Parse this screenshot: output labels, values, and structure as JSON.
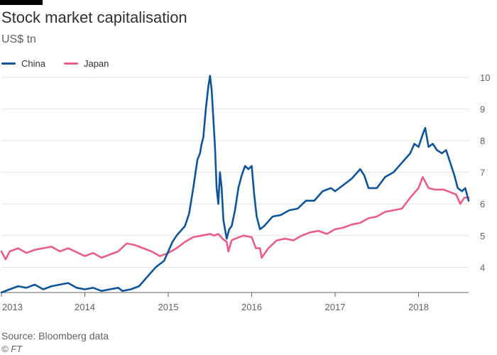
{
  "header": {
    "title": "Stock market capitalisation",
    "subtitle": "US$ tn"
  },
  "footer": {
    "source": "Source: Bloomberg data",
    "credit": "© FT"
  },
  "chart_data": {
    "type": "line",
    "title": "Stock market capitalisation",
    "ylabel": "US$ tn",
    "xlabel": "",
    "ylim": [
      3.2,
      10.2
    ],
    "xlim": [
      2013.0,
      2018.6
    ],
    "y_ticks": [
      4,
      5,
      6,
      7,
      8,
      9,
      10
    ],
    "x_ticks": [
      {
        "value": 2013.0,
        "label": "2013"
      },
      {
        "value": 2014.0,
        "label": "2014"
      },
      {
        "value": 2015.0,
        "label": "2015"
      },
      {
        "value": 2016.0,
        "label": "2016"
      },
      {
        "value": 2017.0,
        "label": "2017"
      },
      {
        "value": 2018.0,
        "label": "2018"
      }
    ],
    "grid": true,
    "legend": "top-left",
    "series": [
      {
        "name": "China",
        "color": "#0f5499",
        "points": [
          [
            2013.0,
            3.2
          ],
          [
            2013.1,
            3.3
          ],
          [
            2013.2,
            3.4
          ],
          [
            2013.3,
            3.35
          ],
          [
            2013.4,
            3.45
          ],
          [
            2013.5,
            3.3
          ],
          [
            2013.6,
            3.4
          ],
          [
            2013.7,
            3.45
          ],
          [
            2013.8,
            3.5
          ],
          [
            2013.9,
            3.35
          ],
          [
            2014.0,
            3.3
          ],
          [
            2014.1,
            3.35
          ],
          [
            2014.2,
            3.25
          ],
          [
            2014.3,
            3.3
          ],
          [
            2014.4,
            3.35
          ],
          [
            2014.45,
            3.25
          ],
          [
            2014.55,
            3.3
          ],
          [
            2014.65,
            3.4
          ],
          [
            2014.75,
            3.7
          ],
          [
            2014.85,
            4.0
          ],
          [
            2014.95,
            4.2
          ],
          [
            2015.0,
            4.5
          ],
          [
            2015.05,
            4.8
          ],
          [
            2015.1,
            5.0
          ],
          [
            2015.15,
            5.15
          ],
          [
            2015.2,
            5.3
          ],
          [
            2015.25,
            5.7
          ],
          [
            2015.3,
            6.5
          ],
          [
            2015.35,
            7.4
          ],
          [
            2015.38,
            7.6
          ],
          [
            2015.4,
            7.9
          ],
          [
            2015.42,
            8.1
          ],
          [
            2015.45,
            9.0
          ],
          [
            2015.48,
            9.7
          ],
          [
            2015.5,
            10.05
          ],
          [
            2015.52,
            9.6
          ],
          [
            2015.54,
            8.7
          ],
          [
            2015.56,
            7.8
          ],
          [
            2015.58,
            6.5
          ],
          [
            2015.6,
            6.0
          ],
          [
            2015.62,
            7.0
          ],
          [
            2015.64,
            6.5
          ],
          [
            2015.66,
            5.5
          ],
          [
            2015.68,
            5.2
          ],
          [
            2015.7,
            4.9
          ],
          [
            2015.73,
            5.2
          ],
          [
            2015.76,
            5.3
          ],
          [
            2015.8,
            5.8
          ],
          [
            2015.84,
            6.5
          ],
          [
            2015.88,
            6.9
          ],
          [
            2015.92,
            7.2
          ],
          [
            2015.96,
            7.1
          ],
          [
            2016.0,
            7.2
          ],
          [
            2016.03,
            6.3
          ],
          [
            2016.06,
            5.6
          ],
          [
            2016.1,
            5.2
          ],
          [
            2016.15,
            5.3
          ],
          [
            2016.25,
            5.6
          ],
          [
            2016.35,
            5.65
          ],
          [
            2016.45,
            5.8
          ],
          [
            2016.55,
            5.85
          ],
          [
            2016.65,
            6.1
          ],
          [
            2016.75,
            6.1
          ],
          [
            2016.85,
            6.4
          ],
          [
            2016.95,
            6.5
          ],
          [
            2017.0,
            6.4
          ],
          [
            2017.1,
            6.6
          ],
          [
            2017.2,
            6.8
          ],
          [
            2017.3,
            7.1
          ],
          [
            2017.35,
            6.9
          ],
          [
            2017.4,
            6.5
          ],
          [
            2017.5,
            6.5
          ],
          [
            2017.6,
            6.85
          ],
          [
            2017.7,
            7.0
          ],
          [
            2017.8,
            7.3
          ],
          [
            2017.9,
            7.6
          ],
          [
            2017.95,
            7.9
          ],
          [
            2018.0,
            7.8
          ],
          [
            2018.05,
            8.2
          ],
          [
            2018.08,
            8.4
          ],
          [
            2018.12,
            7.8
          ],
          [
            2018.17,
            7.9
          ],
          [
            2018.22,
            7.7
          ],
          [
            2018.28,
            7.6
          ],
          [
            2018.33,
            7.7
          ],
          [
            2018.38,
            7.3
          ],
          [
            2018.43,
            6.9
          ],
          [
            2018.47,
            6.5
          ],
          [
            2018.52,
            6.4
          ],
          [
            2018.56,
            6.5
          ],
          [
            2018.6,
            6.1
          ]
        ]
      },
      {
        "name": "Japan",
        "color": "#e95d8c",
        "points": [
          [
            2013.0,
            4.5
          ],
          [
            2013.05,
            4.25
          ],
          [
            2013.1,
            4.5
          ],
          [
            2013.2,
            4.6
          ],
          [
            2013.3,
            4.45
          ],
          [
            2013.4,
            4.55
          ],
          [
            2013.5,
            4.6
          ],
          [
            2013.6,
            4.65
          ],
          [
            2013.7,
            4.5
          ],
          [
            2013.8,
            4.6
          ],
          [
            2014.0,
            4.35
          ],
          [
            2014.1,
            4.45
          ],
          [
            2014.2,
            4.3
          ],
          [
            2014.3,
            4.4
          ],
          [
            2014.4,
            4.5
          ],
          [
            2014.5,
            4.75
          ],
          [
            2014.6,
            4.7
          ],
          [
            2014.7,
            4.6
          ],
          [
            2014.8,
            4.5
          ],
          [
            2014.9,
            4.35
          ],
          [
            2015.0,
            4.45
          ],
          [
            2015.1,
            4.6
          ],
          [
            2015.2,
            4.8
          ],
          [
            2015.3,
            4.95
          ],
          [
            2015.4,
            5.0
          ],
          [
            2015.5,
            5.05
          ],
          [
            2015.55,
            5.0
          ],
          [
            2015.6,
            5.05
          ],
          [
            2015.65,
            4.9
          ],
          [
            2015.7,
            4.8
          ],
          [
            2015.72,
            4.5
          ],
          [
            2015.76,
            4.85
          ],
          [
            2015.8,
            4.9
          ],
          [
            2015.9,
            5.0
          ],
          [
            2016.0,
            4.95
          ],
          [
            2016.05,
            4.6
          ],
          [
            2016.1,
            4.6
          ],
          [
            2016.12,
            4.3
          ],
          [
            2016.2,
            4.6
          ],
          [
            2016.3,
            4.85
          ],
          [
            2016.4,
            4.9
          ],
          [
            2016.5,
            4.85
          ],
          [
            2016.6,
            5.0
          ],
          [
            2016.7,
            5.1
          ],
          [
            2016.8,
            5.15
          ],
          [
            2016.9,
            5.05
          ],
          [
            2017.0,
            5.2
          ],
          [
            2017.1,
            5.25
          ],
          [
            2017.2,
            5.35
          ],
          [
            2017.3,
            5.4
          ],
          [
            2017.4,
            5.55
          ],
          [
            2017.5,
            5.6
          ],
          [
            2017.6,
            5.75
          ],
          [
            2017.7,
            5.8
          ],
          [
            2017.8,
            5.85
          ],
          [
            2017.9,
            6.2
          ],
          [
            2018.0,
            6.5
          ],
          [
            2018.05,
            6.85
          ],
          [
            2018.08,
            6.7
          ],
          [
            2018.12,
            6.5
          ],
          [
            2018.2,
            6.45
          ],
          [
            2018.3,
            6.45
          ],
          [
            2018.4,
            6.35
          ],
          [
            2018.45,
            6.3
          ],
          [
            2018.5,
            6.0
          ],
          [
            2018.55,
            6.2
          ],
          [
            2018.6,
            6.2
          ]
        ]
      }
    ]
  }
}
